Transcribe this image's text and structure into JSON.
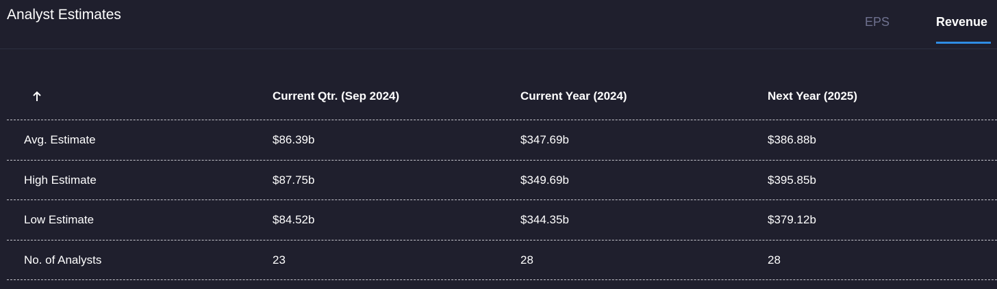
{
  "header": {
    "title": "Analyst Estimates",
    "tabs": [
      "EPS",
      "Revenue"
    ],
    "active_tab": 1
  },
  "table": {
    "columns": [
      "Current Qtr. (Sep 2024)",
      "Current Year (2024)",
      "Next Year (2025)"
    ],
    "rows": [
      [
        "Avg. Estimate",
        "$86.39b",
        "$347.69b",
        "$386.88b"
      ],
      [
        "High Estimate",
        "$87.75b",
        "$349.69b",
        "$395.85b"
      ],
      [
        "Low Estimate",
        "$84.52b",
        "$344.35b",
        "$379.12b"
      ],
      [
        "No. of Analysts",
        "23",
        "28",
        "28"
      ]
    ]
  }
}
